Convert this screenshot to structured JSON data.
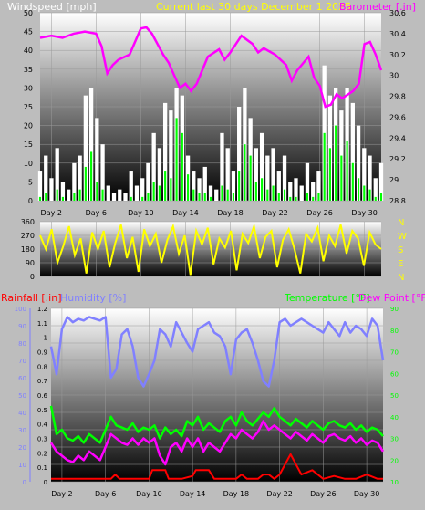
{
  "header": {
    "title": "Current last 30 days December 1 2025",
    "left_label": "Windspeed [mph]",
    "right_label": "Barometer [.in]"
  },
  "colors": {
    "wind": "#ffffff",
    "gust": "#00ff00",
    "barometer": "#ff00ff",
    "direction": "#ffff00",
    "rainfall": "#ff0000",
    "humidity": "#8080ff",
    "temperature": "#00ff00",
    "dewpoint": "#ff00ff",
    "right_axis_lower": "#00ff00",
    "title": "#ffff00"
  },
  "x_ticks": [
    "Day 2",
    "Day 6",
    "Day 10",
    "Day 14",
    "Day 18",
    "Day 22",
    "Day 26",
    "Day 30"
  ],
  "chart_data": [
    {
      "type": "line",
      "name": "wind-barometer",
      "title": "Current last 30 days December 1 2025",
      "ylabel_left": "Windspeed [mph]",
      "ylabel_right": "Barometer [.in]",
      "ylim_left": [
        0,
        50
      ],
      "yticks_left": [
        "0",
        "5",
        "10",
        "15",
        "20",
        "25",
        "30",
        "35",
        "40",
        "45",
        "50"
      ],
      "ylim_right": [
        28.8,
        30.6
      ],
      "yticks_right": [
        "28.8",
        "29",
        "29.2",
        "29.4",
        "29.6",
        "29.8",
        "30",
        "30.2",
        "30.4",
        "30.6"
      ],
      "x_day_range": [
        1,
        31.5
      ],
      "series": [
        {
          "key": "wind",
          "values": [
            8,
            12,
            6,
            14,
            5,
            3,
            10,
            12,
            28,
            30,
            22,
            15,
            4,
            2,
            3,
            2,
            8,
            4,
            6,
            10,
            18,
            14,
            26,
            24,
            30,
            28,
            12,
            8,
            6,
            9,
            4,
            3,
            18,
            14,
            8,
            25,
            30,
            22,
            14,
            18,
            12,
            14,
            8,
            12,
            5,
            6,
            4,
            10,
            5,
            8,
            36,
            28,
            30,
            24,
            30,
            26,
            20,
            14,
            12,
            6,
            10
          ]
        },
        {
          "key": "gust",
          "values": [
            1,
            2,
            0,
            3,
            1,
            0,
            2,
            3,
            9,
            13,
            5,
            3,
            0,
            0,
            0,
            0,
            1,
            0,
            1,
            2,
            5,
            4,
            8,
            6,
            22,
            18,
            7,
            3,
            2,
            2,
            1,
            0,
            4,
            3,
            2,
            8,
            15,
            12,
            5,
            6,
            3,
            4,
            2,
            3,
            1,
            1,
            0,
            2,
            1,
            2,
            18,
            14,
            20,
            12,
            16,
            10,
            6,
            4,
            3,
            1,
            2
          ]
        },
        {
          "key": "barometer",
          "days": [
            1,
            2,
            3,
            4,
            5,
            6,
            6.5,
            7,
            7.5,
            8,
            9,
            10,
            10.5,
            11,
            12,
            12.5,
            13,
            13.5,
            14,
            14.5,
            15,
            15.5,
            16,
            17,
            17.5,
            18,
            18.5,
            19,
            20,
            20.5,
            21,
            22,
            23,
            23.5,
            24,
            25,
            25.5,
            26,
            26.5,
            27,
            27.5,
            28,
            29,
            29.5,
            30,
            30.5,
            31,
            31.5
          ],
          "values": [
            30.36,
            30.38,
            30.36,
            30.4,
            30.42,
            30.4,
            30.28,
            30.02,
            30.1,
            30.15,
            30.2,
            30.45,
            30.46,
            30.4,
            30.2,
            30.12,
            30.0,
            29.88,
            29.92,
            29.85,
            29.92,
            30.05,
            30.18,
            30.25,
            30.15,
            30.22,
            30.3,
            30.38,
            30.3,
            30.22,
            30.26,
            30.2,
            30.1,
            29.95,
            30.05,
            30.18,
            29.98,
            29.9,
            29.7,
            29.72,
            29.82,
            29.78,
            29.85,
            29.92,
            30.3,
            30.32,
            30.2,
            30.05
          ]
        }
      ]
    },
    {
      "type": "line",
      "name": "wind-direction",
      "ylim": [
        0,
        360
      ],
      "yticks": [
        "0",
        "90",
        "180",
        "270",
        "360"
      ],
      "compass_labels": [
        "N",
        "W",
        "S",
        "E",
        "N"
      ],
      "x_day_range": [
        1,
        31.5
      ],
      "series": [
        {
          "key": "direction",
          "values": [
            270,
            180,
            310,
            90,
            200,
            330,
            140,
            250,
            20,
            290,
            180,
            300,
            60,
            220,
            340,
            120,
            260,
            30,
            310,
            200,
            280,
            90,
            240,
            330,
            150,
            270,
            10,
            300,
            210,
            320,
            80,
            250,
            190,
            300,
            40,
            280,
            220,
            330,
            120,
            260,
            300,
            60,
            240,
            310,
            180,
            20,
            280,
            230,
            320,
            100,
            270,
            200,
            340,
            150,
            300,
            250,
            70,
            290,
            210,
            180
          ]
        }
      ]
    },
    {
      "type": "line",
      "name": "rain-humidity-temperature",
      "ylabel_left_outer": "Rainfall [.in]",
      "ylabel_left_inner": "Humidity [%]",
      "ylabel_right_outer": "Temperature [°F]",
      "ylabel_right_inner": "Dew Point [°F]",
      "ylim_rain": [
        0,
        1.2
      ],
      "yticks_rain": [
        "0",
        "0.1",
        "0.2",
        "0.3",
        "0.4",
        "0.5",
        "0.6",
        "0.7",
        "0.8",
        "0.9",
        "1",
        "1.1",
        "1.2"
      ],
      "ylim_humidity": [
        0,
        100
      ],
      "yticks_humidity": [
        "0",
        "10",
        "20",
        "30",
        "40",
        "50",
        "60",
        "70",
        "80",
        "90",
        "100"
      ],
      "ylim_temp": [
        10,
        90
      ],
      "yticks_temp": [
        "10",
        "20",
        "30",
        "40",
        "50",
        "60",
        "70",
        "80",
        "90"
      ],
      "x_day_range": [
        1,
        31.5
      ],
      "series": [
        {
          "key": "humidity",
          "days": [
            1,
            1.5,
            2,
            2.5,
            3,
            3.5,
            4,
            4.5,
            5,
            5.5,
            6,
            6.5,
            7,
            7.5,
            8,
            8.5,
            9,
            9.5,
            10,
            10.5,
            11,
            11.5,
            12,
            12.5,
            13,
            13.5,
            14,
            14.5,
            15,
            15.5,
            16,
            16.5,
            17,
            17.5,
            18,
            18.5,
            19,
            19.5,
            20,
            20.5,
            21,
            21.5,
            22,
            22.5,
            23,
            23.5,
            24,
            24.5,
            25,
            25.5,
            26,
            26.5,
            27,
            27.5,
            28,
            28.5,
            29,
            29.5,
            30,
            30.5,
            31,
            31.5
          ],
          "values": [
            78,
            62,
            88,
            95,
            92,
            94,
            93,
            95,
            94,
            93,
            95,
            60,
            65,
            85,
            88,
            78,
            60,
            55,
            62,
            70,
            88,
            85,
            78,
            92,
            86,
            80,
            75,
            88,
            90,
            92,
            86,
            84,
            78,
            62,
            82,
            86,
            88,
            80,
            70,
            58,
            55,
            70,
            92,
            94,
            90,
            92,
            94,
            92,
            90,
            88,
            86,
            92,
            88,
            84,
            92,
            86,
            90,
            88,
            84,
            94,
            90,
            70
          ]
        },
        {
          "key": "temperature",
          "days": [
            1,
            1.5,
            2,
            2.5,
            3,
            3.5,
            4,
            4.5,
            5,
            5.5,
            6,
            6.5,
            7,
            7.5,
            8,
            8.5,
            9,
            9.5,
            10,
            10.5,
            11,
            11.5,
            12,
            12.5,
            13,
            13.5,
            14,
            14.5,
            15,
            15.5,
            16,
            16.5,
            17,
            17.5,
            18,
            18.5,
            19,
            19.5,
            20,
            20.5,
            21,
            21.5,
            22,
            22.5,
            23,
            23.5,
            24,
            24.5,
            25,
            25.5,
            26,
            26.5,
            27,
            27.5,
            28,
            28.5,
            29,
            29.5,
            30,
            30.5,
            31,
            31.5
          ],
          "values": [
            45,
            32,
            34,
            30,
            29,
            31,
            28,
            32,
            30,
            28,
            34,
            40,
            36,
            35,
            34,
            37,
            33,
            35,
            34,
            36,
            30,
            35,
            32,
            34,
            31,
            38,
            36,
            40,
            34,
            37,
            35,
            33,
            38,
            40,
            36,
            42,
            38,
            36,
            39,
            42,
            40,
            44,
            40,
            38,
            36,
            39,
            37,
            35,
            38,
            36,
            34,
            37,
            38,
            36,
            35,
            37,
            34,
            36,
            33,
            35,
            34,
            31
          ]
        },
        {
          "key": "dewpoint",
          "days": [
            1,
            1.5,
            2,
            2.5,
            3,
            3.5,
            4,
            4.5,
            5,
            5.5,
            6,
            6.5,
            7,
            7.5,
            8,
            8.5,
            9,
            9.5,
            10,
            10.5,
            11,
            11.5,
            12,
            12.5,
            13,
            13.5,
            14,
            14.5,
            15,
            15.5,
            16,
            16.5,
            17,
            17.5,
            18,
            18.5,
            19,
            19.5,
            20,
            20.5,
            21,
            21.5,
            22,
            22.5,
            23,
            23.5,
            24,
            24.5,
            25,
            25.5,
            26,
            26.5,
            27,
            27.5,
            28,
            28.5,
            29,
            29.5,
            30,
            30.5,
            31,
            31.5
          ],
          "values": [
            28,
            24,
            22,
            20,
            19,
            22,
            20,
            24,
            22,
            20,
            26,
            32,
            30,
            28,
            27,
            30,
            27,
            30,
            28,
            30,
            22,
            18,
            26,
            28,
            24,
            30,
            26,
            30,
            24,
            28,
            26,
            24,
            28,
            32,
            30,
            34,
            32,
            30,
            33,
            38,
            34,
            36,
            34,
            32,
            30,
            33,
            31,
            29,
            32,
            30,
            28,
            31,
            32,
            30,
            29,
            31,
            28,
            30,
            27,
            29,
            28,
            24
          ]
        },
        {
          "key": "rainfall",
          "days": [
            1,
            6.5,
            6.9,
            7.3,
            9,
            10,
            10.3,
            11.5,
            11.8,
            13,
            14,
            14.3,
            15.5,
            16,
            17,
            18,
            18.5,
            19,
            20,
            20.5,
            21,
            21.5,
            22,
            22.5,
            23,
            24,
            25,
            26,
            27,
            28,
            29,
            30,
            31,
            31.5
          ],
          "values": [
            0.02,
            0.02,
            0.05,
            0.02,
            0.02,
            0.02,
            0.08,
            0.08,
            0.02,
            0.02,
            0.04,
            0.08,
            0.08,
            0.02,
            0.02,
            0.02,
            0.05,
            0.02,
            0.02,
            0.05,
            0.05,
            0.02,
            0.05,
            0.12,
            0.19,
            0.05,
            0.08,
            0.02,
            0.04,
            0.02,
            0.02,
            0.05,
            0.02,
            0.02
          ]
        }
      ]
    }
  ]
}
